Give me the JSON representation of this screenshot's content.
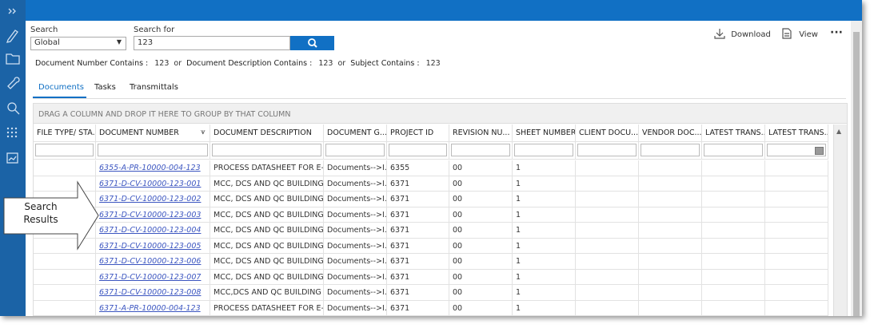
{
  "search": {
    "scope_label": "Search",
    "scope_value": "Global",
    "query_label": "Search for",
    "query_value": "123"
  },
  "toolbar": {
    "download": "Download",
    "view": "View"
  },
  "criteria": [
    {
      "label": "Document Number Contains :",
      "value": "123",
      "join": "or"
    },
    {
      "label": "Document Description Contains :",
      "value": "123",
      "join": "or"
    },
    {
      "label": "Subject Contains :",
      "value": "123"
    }
  ],
  "tabs": [
    "Documents",
    "Tasks",
    "Transmittals"
  ],
  "active_tab": 0,
  "grid": {
    "group_hint": "DRAG A COLUMN AND DROP IT HERE TO GROUP BY THAT COLUMN",
    "columns": [
      "FILE TYPE/ STA...",
      "DOCUMENT NUMBER",
      "DOCUMENT DESCRIPTION",
      "DOCUMENT G...",
      "PROJECT ID",
      "REVISION NU...",
      "SHEET NUMBER",
      "CLIENT DOCU...",
      "VENDOR DOC...",
      "LATEST TRANS...",
      "LATEST TRANS..."
    ],
    "rows": [
      {
        "document_number": "6355-A-PR-10000-004-123",
        "description": "PROCESS DATASHEET FOR E-...",
        "document_group": "Documents-->I...",
        "project_id": "6355",
        "revision": "00",
        "sheet": "1"
      },
      {
        "document_number": "6371-D-CV-10000-123-001",
        "description": "MCC, DCS AND QC BUILDING...",
        "document_group": "Documents-->I...",
        "project_id": "6371",
        "revision": "00",
        "sheet": "1"
      },
      {
        "document_number": "6371-D-CV-10000-123-002",
        "description": "MCC, DCS AND QC BUILDING...",
        "document_group": "Documents-->I...",
        "project_id": "6371",
        "revision": "00",
        "sheet": "1"
      },
      {
        "document_number": "6371-D-CV-10000-123-003",
        "description": "MCC, DCS AND QC BUILDING...",
        "document_group": "Documents-->I...",
        "project_id": "6371",
        "revision": "00",
        "sheet": "1"
      },
      {
        "document_number": "6371-D-CV-10000-123-004",
        "description": "MCC, DCS AND QC BUILDING...",
        "document_group": "Documents-->I...",
        "project_id": "6371",
        "revision": "00",
        "sheet": "1"
      },
      {
        "document_number": "6371-D-CV-10000-123-005",
        "description": "MCC, DCS AND QC BUILDING...",
        "document_group": "Documents-->I...",
        "project_id": "6371",
        "revision": "00",
        "sheet": "1"
      },
      {
        "document_number": "6371-D-CV-10000-123-006",
        "description": "MCC, DCS AND QC BUILDING...",
        "document_group": "Documents-->I...",
        "project_id": "6371",
        "revision": "00",
        "sheet": "1"
      },
      {
        "document_number": "6371-D-CV-10000-123-007",
        "description": "MCC, DCS AND QC BUILDING...",
        "document_group": "Documents-->I...",
        "project_id": "6371",
        "revision": "00",
        "sheet": "1"
      },
      {
        "document_number": "6371-D-CV-10000-123-008",
        "description": "MCC,DCS AND QC BUILDING ...",
        "document_group": "Documents-->I...",
        "project_id": "6371",
        "revision": "00",
        "sheet": "1"
      },
      {
        "document_number": "6371-A-PR-10000-004-123",
        "description": "PROCESS DATASHEET FOR E-...",
        "document_group": "Documents-->I...",
        "project_id": "6371",
        "revision": "00",
        "sheet": "1"
      }
    ]
  },
  "callout": [
    "Search",
    "Results"
  ]
}
